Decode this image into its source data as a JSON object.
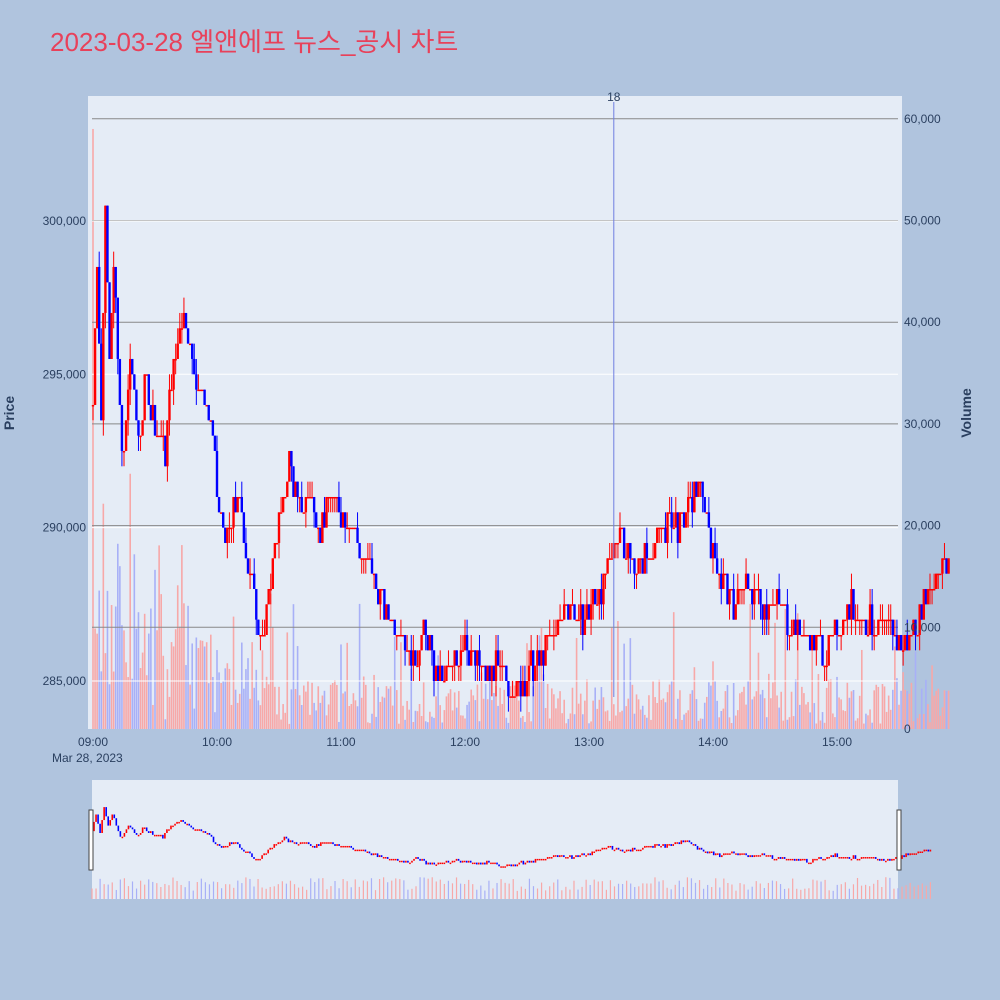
{
  "title": "2023-03-28 엘앤에프 뉴스_공시 차트",
  "colors": {
    "up": "#ff0000",
    "down": "#0000ff",
    "background": "#b0c4de",
    "plot_bg": "#e5ecf6",
    "title": "#e8415a"
  },
  "annotation": {
    "label": "18",
    "time": "13:12"
  },
  "chart_data": {
    "type": "candlestick+bar",
    "date_label": "Mar 28, 2023",
    "x_ticks": [
      "09:00",
      "10:00",
      "11:00",
      "12:00",
      "13:00",
      "14:00",
      "15:00"
    ],
    "y_left": {
      "label": "Price",
      "ticks": [
        "285,000",
        "290,000",
        "295,000",
        "300,000"
      ],
      "range": [
        283500,
        303500
      ]
    },
    "y_right": {
      "label": "Volume",
      "ticks": [
        "0",
        "10,000",
        "20,000",
        "30,000",
        "40,000",
        "50,000",
        "60,000"
      ],
      "range": [
        0,
        60000
      ]
    },
    "price_path": [
      [
        "09:00",
        294000
      ],
      [
        "09:02",
        299000
      ],
      [
        "09:04",
        293500
      ],
      [
        "09:06",
        300500
      ],
      [
        "09:08",
        296000
      ],
      [
        "09:10",
        298500
      ],
      [
        "09:13",
        294000
      ],
      [
        "09:15",
        292000
      ],
      [
        "09:18",
        295500
      ],
      [
        "09:22",
        293000
      ],
      [
        "09:26",
        294800
      ],
      [
        "09:30",
        293200
      ],
      [
        "09:35",
        292500
      ],
      [
        "09:38",
        295000
      ],
      [
        "09:42",
        296500
      ],
      [
        "09:45",
        297000
      ],
      [
        "09:48",
        295500
      ],
      [
        "09:52",
        294500
      ],
      [
        "09:57",
        293500
      ],
      [
        "10:00",
        291000
      ],
      [
        "10:05",
        289500
      ],
      [
        "10:10",
        291000
      ],
      [
        "10:16",
        288500
      ],
      [
        "10:20",
        287000
      ],
      [
        "10:23",
        286500
      ],
      [
        "10:28",
        289500
      ],
      [
        "10:32",
        290500
      ],
      [
        "10:35",
        292200
      ],
      [
        "10:40",
        290500
      ],
      [
        "10:45",
        291000
      ],
      [
        "10:50",
        290000
      ],
      [
        "10:55",
        291000
      ],
      [
        "11:00",
        290500
      ],
      [
        "11:05",
        290000
      ],
      [
        "11:10",
        289000
      ],
      [
        "11:15",
        288500
      ],
      [
        "11:20",
        287500
      ],
      [
        "11:25",
        287000
      ],
      [
        "11:30",
        286500
      ],
      [
        "11:35",
        285500
      ],
      [
        "11:40",
        286800
      ],
      [
        "11:45",
        285500
      ],
      [
        "11:50",
        285000
      ],
      [
        "11:55",
        285500
      ],
      [
        "12:00",
        286500
      ],
      [
        "12:05",
        285500
      ],
      [
        "12:10",
        285000
      ],
      [
        "12:15",
        285500
      ],
      [
        "12:20",
        285000
      ],
      [
        "12:25",
        284800
      ],
      [
        "12:30",
        285200
      ],
      [
        "12:35",
        285600
      ],
      [
        "12:40",
        286200
      ],
      [
        "12:45",
        286900
      ],
      [
        "12:50",
        287600
      ],
      [
        "12:55",
        286800
      ],
      [
        "13:00",
        287200
      ],
      [
        "13:05",
        288000
      ],
      [
        "13:10",
        288800
      ],
      [
        "13:15",
        290000
      ],
      [
        "13:20",
        289000
      ],
      [
        "13:25",
        288800
      ],
      [
        "13:30",
        289200
      ],
      [
        "13:35",
        289800
      ],
      [
        "13:40",
        290200
      ],
      [
        "13:45",
        290000
      ],
      [
        "13:50",
        290800
      ],
      [
        "13:53",
        291500
      ],
      [
        "13:57",
        290500
      ],
      [
        "14:00",
        289000
      ],
      [
        "14:05",
        288200
      ],
      [
        "14:10",
        287500
      ],
      [
        "14:15",
        288000
      ],
      [
        "14:20",
        287800
      ],
      [
        "14:25",
        287500
      ],
      [
        "14:30",
        287600
      ],
      [
        "14:35",
        287200
      ],
      [
        "14:40",
        286800
      ],
      [
        "14:45",
        286500
      ],
      [
        "14:50",
        286200
      ],
      [
        "14:55",
        286000
      ],
      [
        "15:00",
        286600
      ],
      [
        "15:05",
        287500
      ],
      [
        "15:10",
        287200
      ],
      [
        "15:15",
        287000
      ],
      [
        "15:20",
        286800
      ],
      [
        "15:25",
        286700
      ],
      [
        "15:30",
        286200
      ],
      [
        "15:35",
        286300
      ],
      [
        "15:40",
        287000
      ],
      [
        "15:45",
        288200
      ],
      [
        "15:50",
        288800
      ],
      [
        "15:55",
        288600
      ]
    ]
  }
}
